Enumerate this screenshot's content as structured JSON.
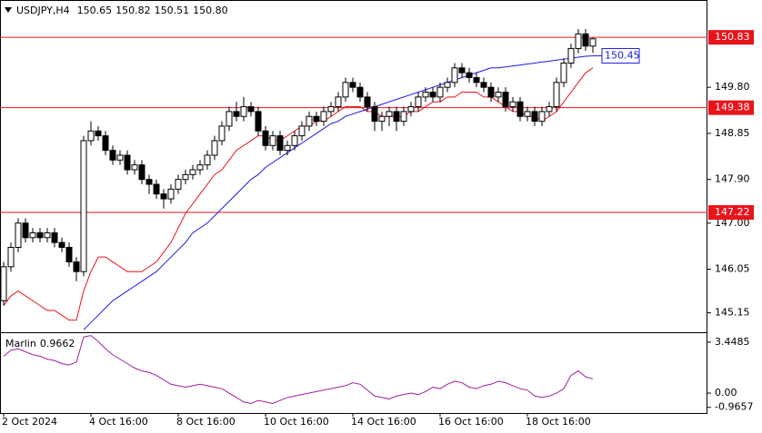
{
  "chart_data": {
    "type": "candlestick",
    "symbol": "USDJPY,H4",
    "ohlc_labels": [
      "150.65",
      "150.82",
      "150.51",
      "150.80"
    ],
    "open": [
      145.4,
      146.1,
      146.5,
      147.0,
      146.7,
      146.8,
      146.7,
      146.8,
      146.6,
      146.5,
      146.2,
      146.0,
      148.7,
      148.9,
      148.8,
      148.5,
      148.3,
      148.4,
      148.1,
      148.2,
      147.9,
      147.8,
      147.6,
      147.5,
      147.7,
      147.9,
      148.0,
      148.1,
      148.2,
      148.4,
      148.7,
      149.0,
      149.3,
      149.2,
      149.4,
      149.3,
      148.9,
      148.6,
      148.8,
      148.5,
      148.6,
      148.8,
      149.0,
      149.2,
      149.1,
      149.3,
      149.4,
      149.6,
      149.9,
      149.8,
      149.6,
      149.4,
      149.1,
      149.2,
      149.3,
      149.1,
      149.3,
      149.4,
      149.6,
      149.7,
      149.6,
      149.8,
      149.9,
      150.2,
      150.1,
      150.0,
      149.9,
      149.8,
      149.6,
      149.7,
      149.4,
      149.5,
      149.2,
      149.3,
      149.1,
      149.3,
      149.4,
      149.9,
      150.3,
      150.6,
      150.9,
      150.65
    ],
    "high": [
      146.2,
      146.6,
      147.1,
      147.1,
      146.9,
      146.9,
      146.9,
      146.9,
      146.7,
      146.6,
      146.3,
      148.8,
      149.1,
      149.0,
      148.9,
      148.6,
      148.5,
      148.5,
      148.3,
      148.3,
      148.0,
      147.9,
      147.7,
      147.8,
      148.0,
      148.1,
      148.2,
      148.3,
      148.5,
      148.8,
      149.1,
      149.4,
      149.5,
      149.6,
      149.5,
      149.4,
      149.0,
      148.9,
      148.9,
      148.7,
      148.9,
      149.1,
      149.3,
      149.3,
      149.4,
      149.5,
      149.7,
      150.0,
      150.0,
      149.9,
      149.7,
      149.5,
      149.3,
      149.4,
      149.4,
      149.4,
      149.5,
      149.7,
      149.8,
      149.8,
      149.9,
      150.0,
      150.3,
      150.3,
      150.2,
      150.1,
      150.0,
      149.9,
      149.8,
      149.8,
      149.6,
      149.6,
      149.4,
      149.4,
      149.4,
      149.5,
      150.0,
      150.4,
      150.7,
      151.0,
      151.0,
      150.82
    ],
    "low": [
      145.3,
      146.0,
      146.4,
      146.6,
      146.6,
      146.6,
      146.6,
      146.5,
      146.4,
      146.1,
      145.8,
      145.9,
      148.6,
      148.7,
      148.4,
      148.2,
      148.2,
      148.0,
      148.0,
      147.8,
      147.6,
      147.5,
      147.3,
      147.4,
      147.6,
      147.8,
      147.9,
      148.0,
      148.1,
      148.3,
      148.6,
      148.9,
      149.1,
      149.1,
      149.2,
      148.8,
      148.5,
      148.5,
      148.4,
      148.4,
      148.5,
      148.7,
      148.9,
      149.0,
      149.0,
      149.2,
      149.3,
      149.5,
      149.7,
      149.5,
      149.3,
      148.9,
      148.9,
      149.0,
      148.9,
      149.0,
      149.2,
      149.3,
      149.5,
      149.5,
      149.5,
      149.7,
      149.8,
      150.0,
      149.9,
      149.8,
      149.7,
      149.5,
      149.5,
      149.3,
      149.3,
      149.1,
      149.1,
      149.0,
      149.0,
      149.2,
      149.3,
      149.8,
      150.2,
      150.5,
      150.55,
      150.51
    ],
    "close": [
      146.1,
      146.5,
      147.0,
      146.7,
      146.8,
      146.7,
      146.8,
      146.6,
      146.5,
      146.2,
      146.0,
      148.7,
      148.9,
      148.8,
      148.5,
      148.3,
      148.4,
      148.1,
      148.2,
      147.9,
      147.8,
      147.6,
      147.5,
      147.7,
      147.9,
      148.0,
      148.1,
      148.2,
      148.4,
      148.7,
      149.0,
      149.3,
      149.2,
      149.4,
      149.3,
      148.9,
      148.6,
      148.8,
      148.5,
      148.6,
      148.8,
      149.0,
      149.2,
      149.1,
      149.3,
      149.4,
      149.6,
      149.9,
      149.8,
      149.6,
      149.4,
      149.1,
      149.2,
      149.3,
      149.1,
      149.3,
      149.4,
      149.6,
      149.7,
      149.6,
      149.8,
      149.9,
      150.2,
      150.1,
      150.0,
      149.9,
      149.8,
      149.6,
      149.7,
      149.4,
      149.5,
      149.2,
      149.3,
      149.1,
      149.3,
      149.4,
      149.9,
      150.3,
      150.6,
      150.9,
      150.65,
      150.8
    ],
    "up_color": "#ffffff",
    "down_color": "#000000",
    "series": [
      {
        "color": "#e8141b",
        "values": [
          145.3,
          145.5,
          145.6,
          145.5,
          145.4,
          145.3,
          145.2,
          145.2,
          145.1,
          145.0,
          145.0,
          145.6,
          146.0,
          146.3,
          146.3,
          146.2,
          146.1,
          146.0,
          146.0,
          146.0,
          146.1,
          146.2,
          146.4,
          146.6,
          146.9,
          147.2,
          147.4,
          147.6,
          147.8,
          148.0,
          148.1,
          148.3,
          148.5,
          148.6,
          148.7,
          148.8,
          148.8,
          148.7,
          148.7,
          148.8,
          148.9,
          149.0,
          149.0,
          149.1,
          149.1,
          149.2,
          149.3,
          149.4,
          149.4,
          149.4,
          149.3,
          149.3,
          149.2,
          149.2,
          149.2,
          149.2,
          149.3,
          149.3,
          149.4,
          149.5,
          149.5,
          149.6,
          149.6,
          149.7,
          149.7,
          149.7,
          149.6,
          149.6,
          149.5,
          149.4,
          149.3,
          149.3,
          149.2,
          149.2,
          149.1,
          149.2,
          149.3,
          149.5,
          149.7,
          149.9,
          150.1,
          150.2
        ]
      },
      {
        "color": "#1a1ae6",
        "values": [
          null,
          null,
          null,
          null,
          null,
          null,
          null,
          null,
          null,
          null,
          null,
          144.8,
          144.95,
          145.1,
          145.25,
          145.4,
          145.5,
          145.6,
          145.7,
          145.8,
          145.9,
          146.0,
          146.15,
          146.3,
          146.45,
          146.6,
          146.8,
          146.9,
          147.0,
          147.15,
          147.3,
          147.45,
          147.6,
          147.75,
          147.9,
          148.0,
          148.15,
          148.25,
          148.35,
          148.45,
          148.55,
          148.65,
          148.75,
          148.85,
          148.95,
          149.05,
          149.1,
          149.2,
          149.25,
          149.3,
          149.35,
          149.4,
          149.45,
          149.5,
          149.55,
          149.6,
          149.65,
          149.7,
          149.75,
          149.8,
          149.85,
          149.9,
          149.95,
          150.0,
          150.05,
          150.1,
          150.15,
          150.2,
          150.2,
          150.22,
          150.24,
          150.26,
          150.28,
          150.3,
          150.32,
          150.34,
          150.36,
          150.38,
          150.4,
          150.42,
          150.44,
          150.45
        ]
      }
    ],
    "levels": [
      150.83,
      149.38,
      147.22
    ],
    "level_color": "#e8141b",
    "ylim": [
      144.75,
      151.6
    ],
    "yticks": [
      {
        "value": 149.8,
        "label": "149.80"
      },
      148.85,
      {
        "value": 147.9,
        "label": "147.90"
      },
      {
        "value": 147.0,
        "label": "147.00"
      },
      146.05,
      145.15
    ],
    "xticks": [
      {
        "value": 0,
        "label": "2 Oct 2024"
      },
      {
        "value": 12,
        "label": "4 Oct 16:00"
      },
      {
        "value": 24,
        "label": "8 Oct 16:00"
      },
      {
        "value": 36,
        "label": "10 Oct 16:00"
      },
      {
        "value": 48,
        "label": "14 Oct 16:00"
      },
      {
        "value": 60,
        "label": "16 Oct 16:00"
      },
      {
        "value": 72,
        "label": "18 Oct 16:00"
      }
    ],
    "indicator": {
      "name": "Marlin",
      "color": "#a020a0",
      "values": [
        2.5,
        2.9,
        3.0,
        2.8,
        2.6,
        2.5,
        2.3,
        2.2,
        2.0,
        1.9,
        2.1,
        3.8,
        3.9,
        3.5,
        3.0,
        2.6,
        2.3,
        2.0,
        1.7,
        1.5,
        1.4,
        1.2,
        0.9,
        0.6,
        0.5,
        0.4,
        0.5,
        0.6,
        0.5,
        0.4,
        0.3,
        0.0,
        -0.3,
        -0.6,
        -0.7,
        -0.5,
        -0.6,
        -0.7,
        -0.5,
        -0.3,
        -0.2,
        -0.1,
        0.0,
        0.1,
        0.2,
        0.3,
        0.4,
        0.5,
        0.7,
        0.6,
        0.2,
        -0.2,
        -0.3,
        -0.4,
        -0.2,
        -0.1,
        0.0,
        -0.1,
        0.1,
        0.4,
        0.3,
        0.6,
        0.8,
        0.7,
        0.4,
        0.3,
        0.5,
        0.6,
        0.8,
        0.7,
        0.5,
        0.3,
        0.2,
        -0.2,
        -0.3,
        -0.2,
        0.0,
        0.3,
        1.2,
        1.5,
        1.1,
        0.9662
      ],
      "ylim": [
        -1.35,
        4.06
      ],
      "yticks": [
        3.4485,
        {
          "value": 0,
          "label": "0.00"
        },
        -0.9657
      ]
    }
  }
}
